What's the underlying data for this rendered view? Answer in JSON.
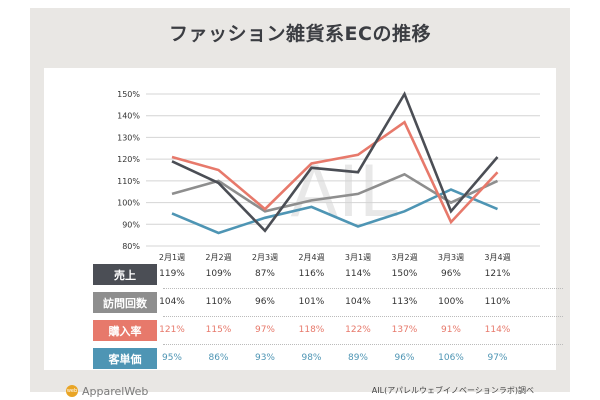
{
  "chart_data": {
    "type": "line",
    "title": "ファッション雑貨系ECの推移",
    "watermark": "AIL",
    "categories": [
      "2月1週",
      "2月2週",
      "2月3週",
      "2月4週",
      "3月1週",
      "3月2週",
      "3月3週",
      "3月4週"
    ],
    "y_ticks": [
      "150%",
      "140%",
      "130%",
      "120%",
      "110%",
      "100%",
      "90%",
      "80%"
    ],
    "ylim": [
      80,
      150
    ],
    "grid": true,
    "series": [
      {
        "name": "売上",
        "color": "#4b4e55",
        "values": [
          119,
          109,
          87,
          116,
          114,
          150,
          96,
          121
        ],
        "labels": [
          "119%",
          "109%",
          "87%",
          "116%",
          "114%",
          "150%",
          "96%",
          "121%"
        ]
      },
      {
        "name": "訪問回数",
        "color": "#8e8e8e",
        "values": [
          104,
          110,
          96,
          101,
          104,
          113,
          100,
          110
        ],
        "labels": [
          "104%",
          "110%",
          "96%",
          "101%",
          "104%",
          "113%",
          "100%",
          "110%"
        ]
      },
      {
        "name": "購入率",
        "color": "#e7796b",
        "values": [
          121,
          115,
          97,
          118,
          122,
          137,
          91,
          114
        ],
        "labels": [
          "121%",
          "115%",
          "97%",
          "118%",
          "122%",
          "137%",
          "91%",
          "114%"
        ]
      },
      {
        "name": "客単価",
        "color": "#4e95b4",
        "values": [
          95,
          86,
          93,
          98,
          89,
          96,
          106,
          97
        ],
        "labels": [
          "95%",
          "86%",
          "93%",
          "98%",
          "89%",
          "96%",
          "106%",
          "97%"
        ]
      }
    ]
  },
  "footer": {
    "logo_text": "ApparelWeb",
    "logo_mark": "web",
    "source": "AIL(アパレルウェブイノベーションラボ)調べ"
  }
}
